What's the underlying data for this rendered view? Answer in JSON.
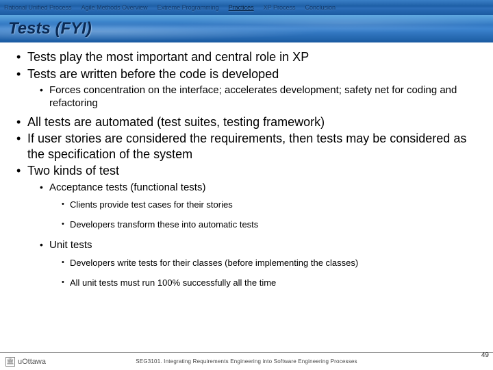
{
  "nav": {
    "items": [
      "Rational Unified Process",
      "Agile Methods Overview",
      "Extreme Programming",
      "Practices",
      "XP Process",
      "Conclusion"
    ],
    "active_index": 3
  },
  "title": "Tests (FYI)",
  "bullets": {
    "l1": [
      "Tests play the most important and central role in XP",
      "Tests are written before the code is developed",
      "All tests are automated (test suites, testing framework)",
      "If user stories are considered the requirements, then tests may be considered as the specification of the system",
      "Two kinds of test"
    ],
    "sub_after_1": [
      "Forces concentration on the interface; accelerates development; safety net for coding and refactoring"
    ],
    "kinds": {
      "acceptance": {
        "label": "Acceptance tests (functional tests)",
        "subs": [
          "Clients provide test cases for their stories",
          "Developers transform these into automatic tests"
        ]
      },
      "unit": {
        "label": "Unit tests",
        "subs": [
          "Developers write tests for their classes (before implementing the classes)",
          "All unit tests must run 100% successfully all the time"
        ]
      }
    }
  },
  "footer": {
    "logo_text": "uOttawa",
    "course": "SEG3101. Integrating Requirements Engineering into Software Engineering Processes",
    "page": "49"
  }
}
